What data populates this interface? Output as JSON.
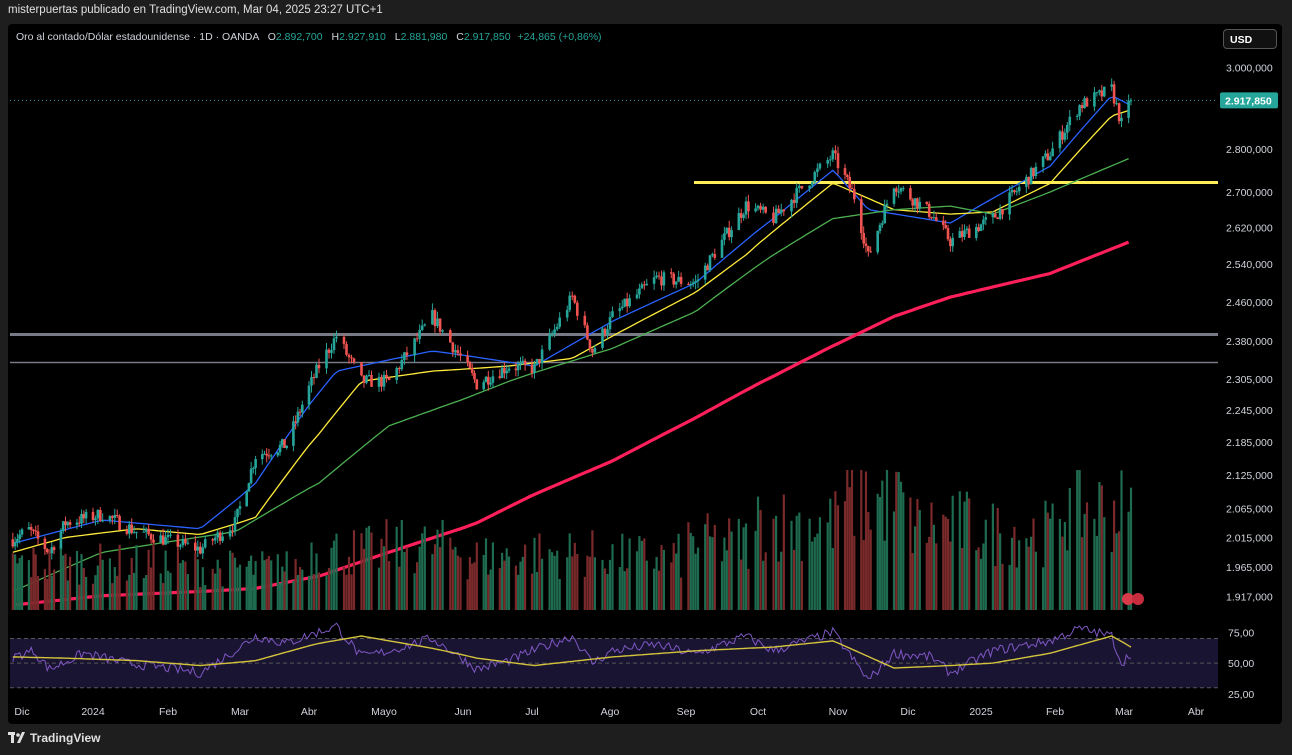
{
  "header": {
    "publisher_line": "misterpuertas publicado en TradingView.com, Mar 04, 2025 23:27 UTC+1"
  },
  "legend": {
    "symbol": "Oro al contado/Dólar estadounidense · 1D · OANDA",
    "open_label": "O",
    "open": "2.892,700",
    "high_label": "H",
    "high": "2.927,910",
    "low_label": "L",
    "low": "2.881,980",
    "close_label": "C",
    "close": "2.917,850",
    "change": "+24,865 (+0,86%)"
  },
  "currency_button": "USD",
  "price_label": "2.917,850",
  "footer": {
    "brand": "TradingView"
  },
  "colors": {
    "up": "#26a69a",
    "down": "#ef5350",
    "ema_fast": "#2962ff",
    "ema_mid": "#ffeb3b",
    "ema_slow": "#4caf50",
    "ma_long": "#ff1f5a",
    "resistance": "#ffee58",
    "support": "#787b86",
    "rsi": "#7e57c2",
    "rsi_ma": "#d4c43c"
  },
  "chart_data": [
    {
      "type": "candlestick",
      "title": "Oro al contado/Dólar estadounidense · 1D · OANDA",
      "y_scale": "log",
      "ylim": [
        1895,
        3040
      ],
      "y_ticks": [
        "3.000,000",
        "2.800,000",
        "2.700,000",
        "2.620,000",
        "2.540,000",
        "2.460,000",
        "2.380,000",
        "2.305,000",
        "2.245,000",
        "2.185,000",
        "2.125,000",
        "2.065,000",
        "2.015,000",
        "1.965,000",
        "1.917,000"
      ],
      "y_tick_values": [
        3000,
        2800,
        2700,
        2620,
        2540,
        2460,
        2380,
        2305,
        2245,
        2185,
        2125,
        2065,
        2015,
        1965,
        1917
      ],
      "x_ticks": [
        "Dic",
        "2024",
        "Feb",
        "Mar",
        "Abr",
        "Mayo",
        "Jun",
        "Jul",
        "Ago",
        "Sep",
        "Oct",
        "Nov",
        "Dic",
        "2025",
        "Feb",
        "Mar",
        "Abr"
      ],
      "x_tick_dates": [
        "2023-12-01",
        "2024-01-01",
        "2024-02-01",
        "2024-03-01",
        "2024-04-01",
        "2024-05-01",
        "2024-06-01",
        "2024-07-01",
        "2024-08-01",
        "2024-09-01",
        "2024-10-01",
        "2024-11-01",
        "2024-12-01",
        "2025-01-01",
        "2025-02-01",
        "2025-03-01",
        "2025-04-01"
      ],
      "last_price": 2917.85,
      "close_path": {
        "dates": [
          "2023-11-27",
          "2023-12-04",
          "2023-12-13",
          "2023-12-20",
          "2024-01-05",
          "2024-01-19",
          "2024-02-14",
          "2024-02-28",
          "2024-03-08",
          "2024-03-22",
          "2024-04-05",
          "2024-04-12",
          "2024-04-22",
          "2024-05-03",
          "2024-05-20",
          "2024-06-07",
          "2024-06-21",
          "2024-07-02",
          "2024-07-17",
          "2024-07-25",
          "2024-08-02",
          "2024-08-20",
          "2024-09-05",
          "2024-09-26",
          "2024-10-07",
          "2024-10-30",
          "2024-11-08",
          "2024-11-14",
          "2024-11-25",
          "2024-12-11",
          "2024-12-19",
          "2025-01-06",
          "2025-01-30",
          "2025-02-11",
          "2025-02-24",
          "2025-02-28",
          "2025-03-04"
        ],
        "values": [
          2012,
          2028,
          1990,
          2040,
          2055,
          2025,
          1995,
          2040,
          2160,
          2180,
          2330,
          2390,
          2300,
          2300,
          2430,
          2295,
          2330,
          2325,
          2470,
          2360,
          2430,
          2510,
          2500,
          2670,
          2640,
          2785,
          2690,
          2555,
          2720,
          2650,
          2590,
          2640,
          2790,
          2905,
          2945,
          2860,
          2917.85
        ]
      },
      "horizontal_lines": [
        {
          "price": 2722,
          "color": "#ffee58",
          "from_date": "2024-09-01"
        },
        {
          "price": 2393,
          "color": "#787b86"
        },
        {
          "price": 2337,
          "color": "#787b86"
        }
      ],
      "series": [
        {
          "type": "line",
          "color": "#2962ff",
          "dates": [
            "2023-11-27",
            "2024-01-05",
            "2024-02-14",
            "2024-03-08",
            "2024-04-12",
            "2024-05-20",
            "2024-07-02",
            "2024-08-02",
            "2024-09-05",
            "2024-10-07",
            "2024-10-30",
            "2024-11-14",
            "2024-12-19",
            "2025-01-30",
            "2025-02-24",
            "2025-03-04"
          ],
          "values": [
            2005,
            2045,
            2030,
            2110,
            2320,
            2360,
            2330,
            2420,
            2500,
            2640,
            2750,
            2660,
            2630,
            2760,
            2930,
            2905
          ]
        },
        {
          "type": "line",
          "color": "#ffeb3b",
          "dates": [
            "2023-11-27",
            "2023-12-20",
            "2024-01-19",
            "2024-02-14",
            "2024-03-08",
            "2024-04-05",
            "2024-04-22",
            "2024-05-20",
            "2024-06-21",
            "2024-07-17",
            "2024-08-02",
            "2024-09-05",
            "2024-09-26",
            "2024-10-30",
            "2024-11-25",
            "2024-12-19",
            "2025-01-06",
            "2025-01-30",
            "2025-02-24",
            "2025-03-04"
          ],
          "values": [
            1990,
            2015,
            2030,
            2020,
            2050,
            2200,
            2300,
            2320,
            2330,
            2345,
            2390,
            2480,
            2560,
            2720,
            2660,
            2650,
            2655,
            2720,
            2880,
            2895
          ]
        },
        {
          "type": "line",
          "color": "#4caf50",
          "dates": [
            "2023-11-27",
            "2024-01-05",
            "2024-02-28",
            "2024-04-05",
            "2024-05-03",
            "2024-06-21",
            "2024-08-02",
            "2024-09-05",
            "2024-10-07",
            "2024-10-30",
            "2024-11-25",
            "2024-12-19",
            "2025-01-06",
            "2025-01-30",
            "2025-03-04"
          ],
          "values": [
            1925,
            1990,
            2025,
            2110,
            2215,
            2300,
            2365,
            2440,
            2560,
            2640,
            2660,
            2668,
            2650,
            2700,
            2780
          ]
        },
        {
          "type": "line",
          "color": "#ff1f5a",
          "dates": [
            "2023-11-27",
            "2024-01-05",
            "2024-02-14",
            "2024-03-08",
            "2024-04-05",
            "2024-05-03",
            "2024-06-07",
            "2024-07-02",
            "2024-08-02",
            "2024-09-05",
            "2024-10-07",
            "2024-10-30",
            "2024-11-25",
            "2024-12-19",
            "2025-01-30",
            "2025-03-04"
          ],
          "values": [
            1903,
            1918,
            1925,
            1930,
            1950,
            1990,
            2040,
            2090,
            2150,
            2230,
            2310,
            2370,
            2430,
            2470,
            2520,
            2590
          ]
        }
      ]
    },
    {
      "type": "bar",
      "title": "Volume",
      "note": "volume bars coloured by candle direction, no volume axis shown",
      "relative_ylim": [
        0,
        1
      ],
      "monthly_relative_height": {
        "months": [
          "Dic",
          "2024",
          "Feb",
          "Mar",
          "Abr",
          "Mayo",
          "Jun",
          "Jul",
          "Ago",
          "Sep",
          "Oct",
          "Nov",
          "Dic",
          "2025",
          "Feb",
          "Mar"
        ],
        "values": [
          0.33,
          0.33,
          0.3,
          0.3,
          0.42,
          0.45,
          0.38,
          0.4,
          0.38,
          0.48,
          0.62,
          0.78,
          0.6,
          0.55,
          0.72,
          0.65
        ]
      }
    },
    {
      "type": "line",
      "title": "RSI",
      "ylim": [
        20,
        85
      ],
      "y_ticks": [
        "75,00",
        "50,00",
        "25,00"
      ],
      "y_tick_values": [
        75,
        50,
        25
      ],
      "band": [
        30,
        70
      ],
      "series": [
        {
          "type": "line",
          "color": "#7e57c2",
          "dates": [
            "2023-11-27",
            "2023-12-06",
            "2023-12-13",
            "2023-12-28",
            "2024-01-15",
            "2024-02-01",
            "2024-02-14",
            "2024-03-08",
            "2024-03-22",
            "2024-04-12",
            "2024-04-22",
            "2024-05-03",
            "2024-05-20",
            "2024-06-07",
            "2024-06-21",
            "2024-07-17",
            "2024-07-25",
            "2024-08-02",
            "2024-08-20",
            "2024-09-05",
            "2024-09-26",
            "2024-10-07",
            "2024-10-30",
            "2024-11-14",
            "2024-11-25",
            "2024-12-11",
            "2024-12-19",
            "2025-01-06",
            "2025-01-30",
            "2025-02-11",
            "2025-02-24",
            "2025-02-28",
            "2025-03-04"
          ],
          "values": [
            55,
            60,
            45,
            58,
            50,
            46,
            42,
            72,
            66,
            80,
            55,
            60,
            70,
            45,
            52,
            72,
            50,
            60,
            65,
            57,
            72,
            60,
            75,
            36,
            58,
            55,
            42,
            60,
            68,
            78,
            72,
            50,
            58
          ]
        },
        {
          "type": "line",
          "color": "#d4c43c",
          "dates": [
            "2023-11-27",
            "2023-12-20",
            "2024-01-19",
            "2024-02-14",
            "2024-03-08",
            "2024-04-05",
            "2024-04-22",
            "2024-05-20",
            "2024-06-07",
            "2024-07-02",
            "2024-08-02",
            "2024-09-05",
            "2024-10-07",
            "2024-10-30",
            "2024-11-25",
            "2024-12-19",
            "2025-01-06",
            "2025-01-30",
            "2025-02-24",
            "2025-03-04"
          ],
          "values": [
            55,
            54,
            52,
            48,
            52,
            66,
            72,
            62,
            54,
            48,
            55,
            60,
            63,
            68,
            46,
            48,
            50,
            58,
            72,
            63
          ]
        }
      ]
    }
  ]
}
